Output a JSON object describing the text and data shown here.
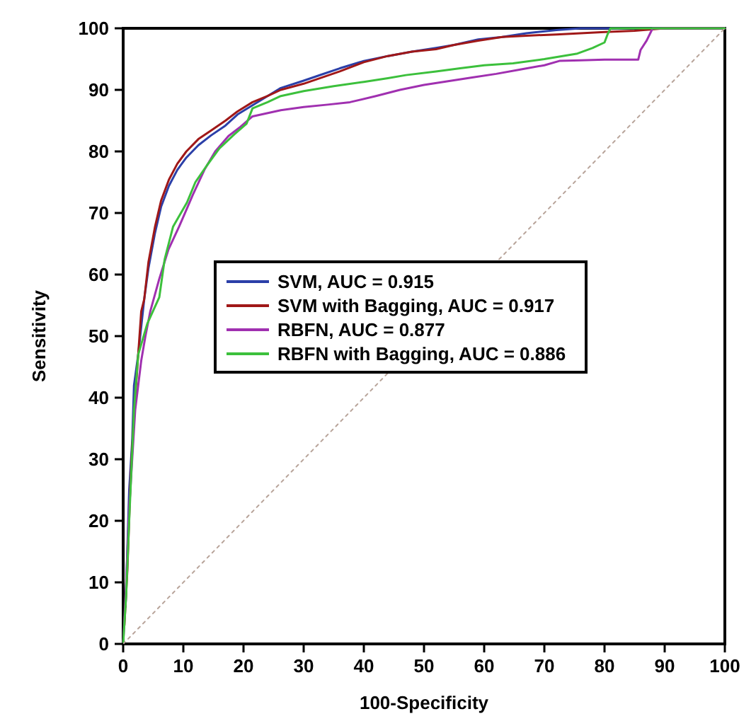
{
  "chart_data": {
    "type": "line",
    "xlabel": "100-Specificity",
    "ylabel": "Sensitivity",
    "xlim": [
      0,
      100
    ],
    "ylim": [
      0,
      100
    ],
    "xticks": [
      0,
      10,
      20,
      30,
      40,
      50,
      60,
      70,
      80,
      90,
      100
    ],
    "yticks": [
      0,
      10,
      20,
      30,
      40,
      50,
      60,
      70,
      80,
      90,
      100
    ],
    "grid": false,
    "legend": "left",
    "line_style": "solid",
    "marker": "none",
    "series": [
      {
        "name": "SVM, AUC = 0.915",
        "color": "#2b3fa8",
        "x": [
          0.4,
          1,
          1.5,
          1.8,
          2.5,
          3.5,
          4.2,
          5.3,
          6.3,
          7.6,
          9,
          10.5,
          12.5,
          14.6,
          17,
          19,
          21.5,
          24,
          26.2,
          30,
          33,
          36,
          40,
          44,
          48,
          52,
          55,
          59,
          63,
          67,
          72,
          76,
          100
        ],
        "values": [
          6,
          25,
          33,
          42,
          47,
          56,
          61,
          66.8,
          71,
          74.4,
          77,
          79,
          81,
          82.6,
          84.2,
          86,
          87.5,
          89,
          90.3,
          91.5,
          92.5,
          93.5,
          94.7,
          95.5,
          96.2,
          96.8,
          97.3,
          98.2,
          98.6,
          99.2,
          99.7,
          100,
          100
        ]
      },
      {
        "name": "SVM with Bagging, AUC = 0.917",
        "color": "#a01818",
        "x": [
          0.2,
          0.7,
          1.2,
          1.5,
          2,
          3,
          3.5,
          4.2,
          5.3,
          6.3,
          7.6,
          9,
          10.5,
          12.5,
          14.6,
          17,
          19,
          21.5,
          24,
          26.2,
          30,
          33,
          36,
          40,
          44,
          48,
          52,
          55,
          59,
          63,
          67,
          72,
          76,
          80,
          85,
          90,
          100
        ],
        "values": [
          3,
          12,
          26,
          32,
          40,
          54,
          56,
          62,
          67.8,
          72,
          75.4,
          78,
          80,
          82,
          83.4,
          85,
          86.5,
          88,
          89,
          90,
          91,
          92,
          93,
          94.5,
          95.5,
          96.2,
          96.6,
          97.3,
          98,
          98.6,
          98.8,
          99,
          99.2,
          99.4,
          99.6,
          100,
          100
        ]
      },
      {
        "name": "RBFN, AUC = 0.877",
        "color": "#a030b0",
        "x": [
          0,
          0.5,
          1,
          2,
          3,
          3.7,
          4.5,
          6,
          7.5,
          9.3,
          10.5,
          11.6,
          13.5,
          15.3,
          17.5,
          19.5,
          21.5,
          26.2,
          30,
          34,
          37.7,
          42,
          46,
          50,
          54,
          58,
          62,
          66,
          70,
          72.5,
          76,
          80,
          85.6,
          86,
          87,
          88,
          90,
          100
        ],
        "values": [
          0,
          10,
          22,
          38,
          46,
          50,
          54,
          59.3,
          64,
          67.8,
          70.5,
          73,
          77,
          80,
          82.5,
          84,
          85.7,
          86.7,
          87.2,
          87.6,
          88,
          89,
          90,
          90.8,
          91.4,
          92,
          92.6,
          93.3,
          94,
          94.7,
          94.8,
          94.9,
          94.9,
          96.5,
          98,
          100,
          100,
          100
        ]
      },
      {
        "name": "RBFN with Bagging, AUC = 0.886",
        "color": "#3cc03c",
        "x": [
          0,
          0.5,
          1,
          1.8,
          2.5,
          4,
          6,
          6.9,
          8.3,
          10.6,
          12,
          13.9,
          16,
          18.5,
          20.5,
          21.5,
          24,
          26.2,
          30,
          35,
          40,
          44,
          47,
          52,
          56,
          60,
          64.8,
          70,
          75.5,
          78,
          80,
          80.5,
          81,
          90,
          100
        ],
        "values": [
          0,
          8,
          20,
          38,
          47,
          52,
          56.3,
          62.5,
          67.8,
          71.7,
          75,
          77.7,
          80.5,
          82.8,
          84.5,
          87,
          88,
          89,
          89.8,
          90.6,
          91.3,
          91.9,
          92.4,
          93,
          93.5,
          94,
          94.3,
          95,
          95.9,
          96.8,
          97.7,
          99,
          100,
          100,
          100
        ]
      },
      {
        "type": "line",
        "color": "#b8a49a",
        "line_style": "dotted",
        "x": [
          0,
          100
        ],
        "values": [
          0,
          100
        ]
      }
    ]
  }
}
